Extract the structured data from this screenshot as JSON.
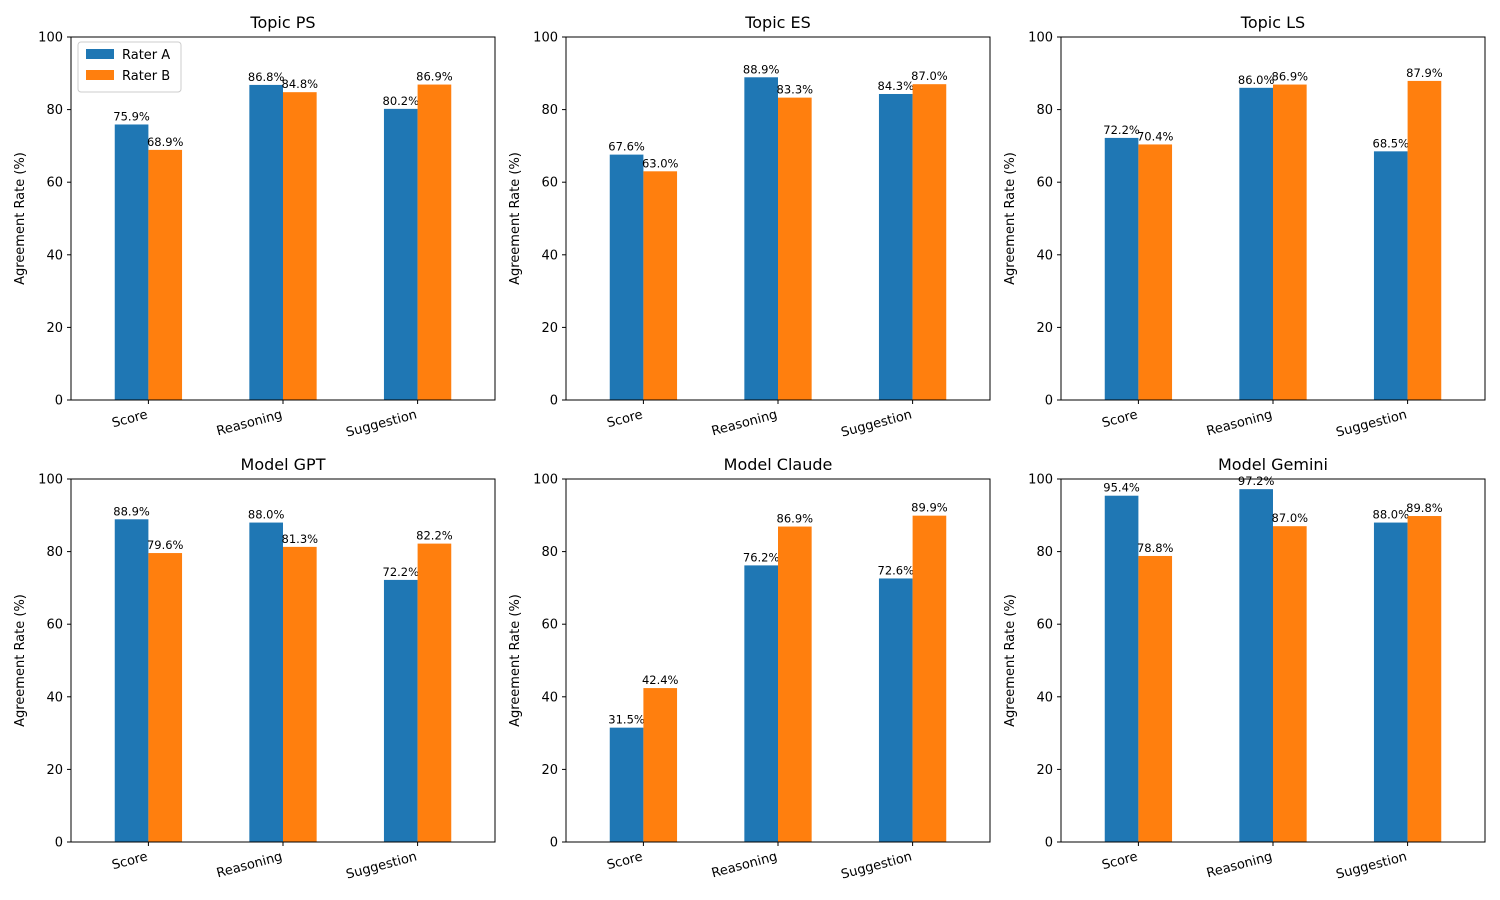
{
  "chart_data": [
    {
      "type": "bar",
      "title": "Topic PS",
      "categories": [
        "Score",
        "Reasoning",
        "Suggestion"
      ],
      "series": [
        {
          "name": "Rater A",
          "values": [
            75.9,
            86.8,
            80.2
          ]
        },
        {
          "name": "Rater B",
          "values": [
            68.9,
            84.8,
            86.9
          ]
        }
      ],
      "value_labels": [
        [
          "75.9%",
          "86.8%",
          "80.2%"
        ],
        [
          "68.9%",
          "84.8%",
          "86.9%"
        ]
      ],
      "xlabel": "",
      "ylabel": "Agreement Rate (%)",
      "ylim": [
        0,
        100
      ],
      "yticks": [
        "0",
        "20",
        "40",
        "60",
        "80",
        "100"
      ],
      "grid": false,
      "legend": "top-left"
    },
    {
      "type": "bar",
      "title": "Topic ES",
      "categories": [
        "Score",
        "Reasoning",
        "Suggestion"
      ],
      "series": [
        {
          "name": "Rater A",
          "values": [
            67.6,
            88.9,
            84.3
          ]
        },
        {
          "name": "Rater B",
          "values": [
            63.0,
            83.3,
            87.0
          ]
        }
      ],
      "value_labels": [
        [
          "67.6%",
          "88.9%",
          "84.3%"
        ],
        [
          "63.0%",
          "83.3%",
          "87.0%"
        ]
      ],
      "xlabel": "",
      "ylabel": "Agreement Rate (%)",
      "ylim": [
        0,
        100
      ],
      "yticks": [
        "0",
        "20",
        "40",
        "60",
        "80",
        "100"
      ],
      "grid": false
    },
    {
      "type": "bar",
      "title": "Topic LS",
      "categories": [
        "Score",
        "Reasoning",
        "Suggestion"
      ],
      "series": [
        {
          "name": "Rater A",
          "values": [
            72.2,
            86.0,
            68.5
          ]
        },
        {
          "name": "Rater B",
          "values": [
            70.4,
            86.9,
            87.9
          ]
        }
      ],
      "value_labels": [
        [
          "72.2%",
          "86.0%",
          "68.5%"
        ],
        [
          "70.4%",
          "86.9%",
          "87.9%"
        ]
      ],
      "xlabel": "",
      "ylabel": "Agreement Rate (%)",
      "ylim": [
        0,
        100
      ],
      "yticks": [
        "0",
        "20",
        "40",
        "60",
        "80",
        "100"
      ],
      "grid": false
    },
    {
      "type": "bar",
      "title": "Model GPT",
      "categories": [
        "Score",
        "Reasoning",
        "Suggestion"
      ],
      "series": [
        {
          "name": "Rater A",
          "values": [
            88.9,
            88.0,
            72.2
          ]
        },
        {
          "name": "Rater B",
          "values": [
            79.6,
            81.3,
            82.2
          ]
        }
      ],
      "value_labels": [
        [
          "88.9%",
          "88.0%",
          "72.2%"
        ],
        [
          "79.6%",
          "81.3%",
          "82.2%"
        ]
      ],
      "xlabel": "",
      "ylabel": "Agreement Rate (%)",
      "ylim": [
        0,
        100
      ],
      "yticks": [
        "0",
        "20",
        "40",
        "60",
        "80",
        "100"
      ],
      "grid": false
    },
    {
      "type": "bar",
      "title": "Model Claude",
      "categories": [
        "Score",
        "Reasoning",
        "Suggestion"
      ],
      "series": [
        {
          "name": "Rater A",
          "values": [
            31.5,
            76.2,
            72.6
          ]
        },
        {
          "name": "Rater B",
          "values": [
            42.4,
            86.9,
            89.9
          ]
        }
      ],
      "value_labels": [
        [
          "31.5%",
          "76.2%",
          "72.6%"
        ],
        [
          "42.4%",
          "86.9%",
          "89.9%"
        ]
      ],
      "xlabel": "",
      "ylabel": "Agreement Rate (%)",
      "ylim": [
        0,
        100
      ],
      "yticks": [
        "0",
        "20",
        "40",
        "60",
        "80",
        "100"
      ],
      "grid": false
    },
    {
      "type": "bar",
      "title": "Model Gemini",
      "categories": [
        "Score",
        "Reasoning",
        "Suggestion"
      ],
      "series": [
        {
          "name": "Rater A",
          "values": [
            95.4,
            97.2,
            88.0
          ]
        },
        {
          "name": "Rater B",
          "values": [
            78.8,
            87.0,
            89.8
          ]
        }
      ],
      "value_labels": [
        [
          "95.4%",
          "97.2%",
          "88.0%"
        ],
        [
          "78.8%",
          "87.0%",
          "89.8%"
        ]
      ],
      "xlabel": "",
      "ylabel": "Agreement Rate (%)",
      "ylim": [
        0,
        100
      ],
      "yticks": [
        "0",
        "20",
        "40",
        "60",
        "80",
        "100"
      ],
      "grid": false
    }
  ],
  "colors": {
    "rater_a": "#1f77b4",
    "rater_b": "#ff7f0e"
  }
}
